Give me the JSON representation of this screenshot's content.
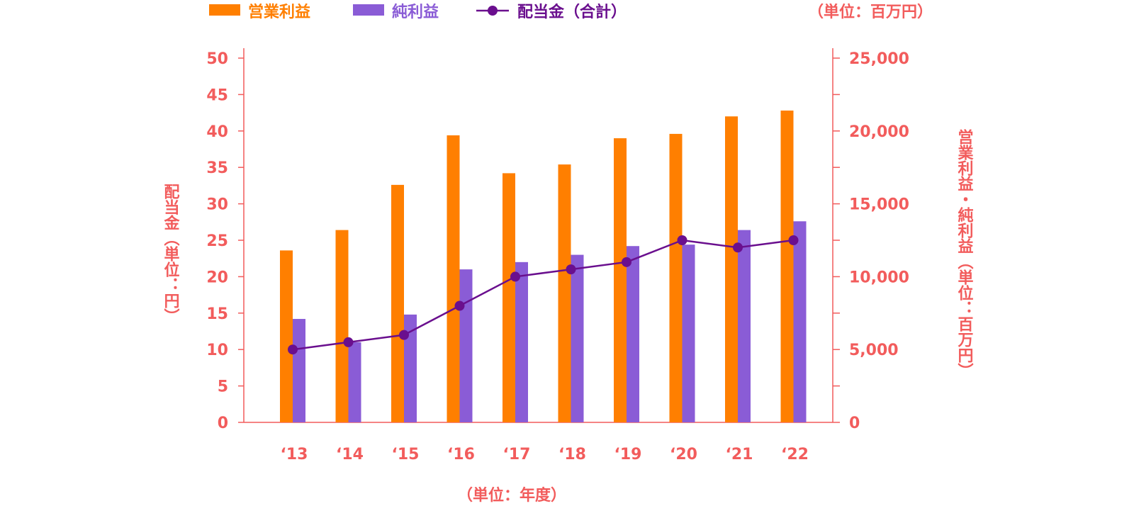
{
  "chart_data": {
    "type": "bar",
    "categories": [
      "‘13",
      "‘14",
      "‘15",
      "‘16",
      "‘17",
      "‘18",
      "‘19",
      "‘20",
      "‘21",
      "‘22"
    ],
    "series": [
      {
        "name": "営業利益",
        "type": "bar",
        "axis": "right",
        "color": "#FF7F00",
        "values": [
          11800,
          13200,
          16300,
          19700,
          17100,
          17700,
          19500,
          19800,
          21000,
          21400
        ]
      },
      {
        "name": "純利益",
        "type": "bar",
        "axis": "right",
        "color": "#8A5CD6",
        "values": [
          7100,
          5500,
          7400,
          10500,
          11000,
          11500,
          12100,
          12200,
          13200,
          13800
        ]
      },
      {
        "name": "配当金（合計）",
        "type": "line",
        "axis": "left",
        "color": "#6A0F8E",
        "values": [
          10,
          11,
          12,
          16,
          20,
          21,
          22,
          25,
          24,
          25
        ]
      }
    ],
    "left_axis": {
      "label": "配当金（単位：円）",
      "ylim": [
        0,
        50
      ],
      "ticks": [
        "0",
        "5",
        "10",
        "15",
        "20",
        "25",
        "30",
        "35",
        "40",
        "45",
        "50"
      ]
    },
    "right_axis": {
      "label": "営業利益・純利益（単位：百万円）",
      "ylim": [
        0,
        25000
      ],
      "ticks": [
        "0",
        "5,000",
        "10,000",
        "15,000",
        "20,000",
        "25,000"
      ]
    },
    "unit_label": "（単位：百万円）",
    "xlabel": "（単位：年度）",
    "legend_position": "top",
    "axis_color": "#F25C5C",
    "grid": false
  }
}
